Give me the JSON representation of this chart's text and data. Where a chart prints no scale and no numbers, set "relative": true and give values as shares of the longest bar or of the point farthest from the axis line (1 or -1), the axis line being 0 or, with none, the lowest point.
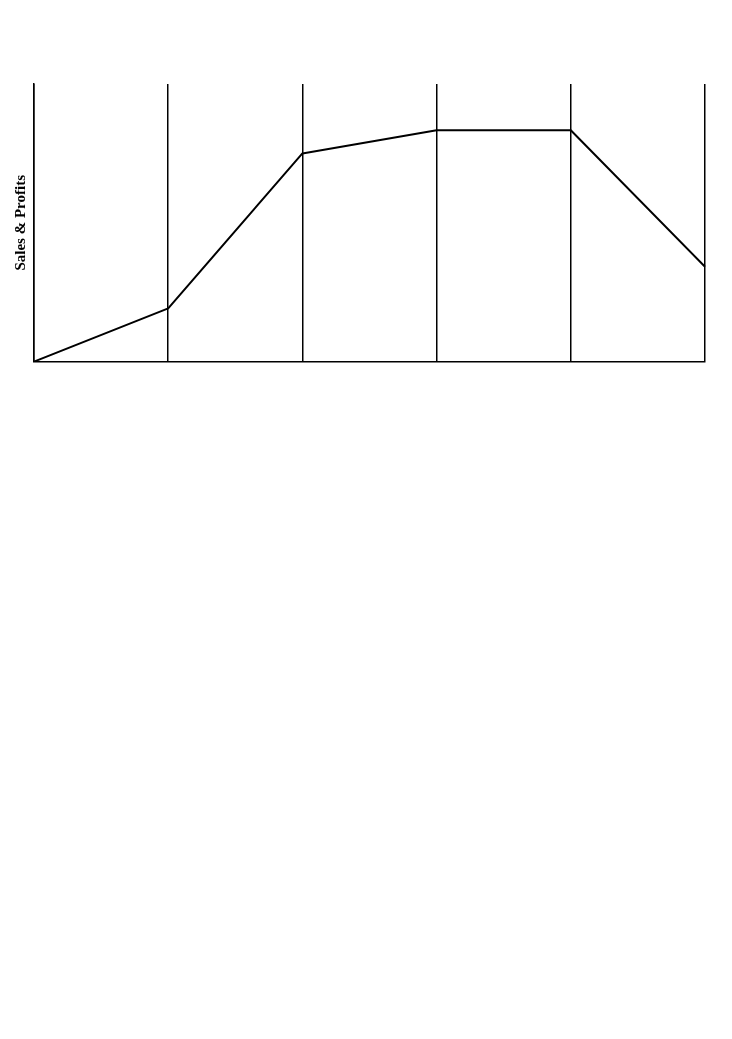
{
  "chart_data": {
    "type": "line",
    "relative": true,
    "ylabel": "Sales & Profits",
    "categories": [
      null,
      null,
      null,
      null,
      null,
      null
    ],
    "series": [
      {
        "color": "#000000",
        "values": [
          0,
          0.23,
          0.9,
          1,
          1,
          0.41
        ]
      }
    ],
    "grid": "x",
    "marker": "none",
    "line_style": "solid",
    "legend": false
  }
}
